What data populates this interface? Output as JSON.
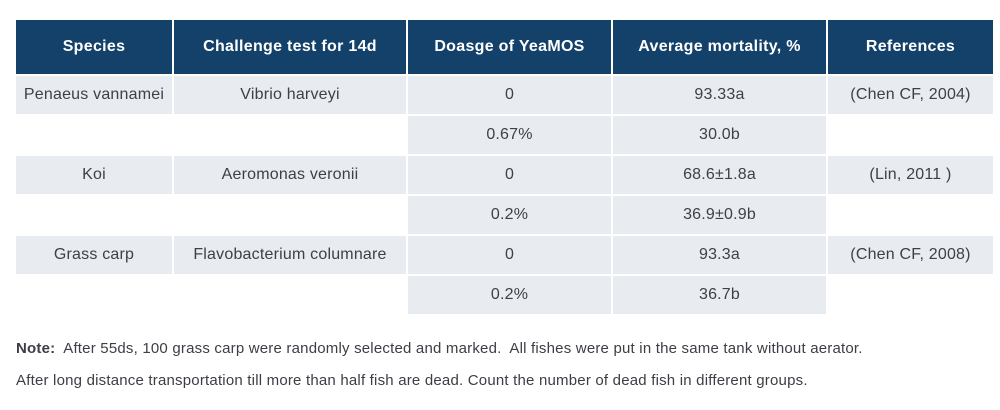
{
  "table": {
    "headers": [
      "Species",
      "Challenge test for 14d",
      "Doasge of YeaMOS",
      "Average mortality, %",
      "References"
    ],
    "rows": [
      {
        "species": "Penaeus vannamei",
        "challenge": "Vibrio harveyi",
        "dosages": [
          "0",
          "0.67%"
        ],
        "mortalities": [
          "93.33a",
          "30.0b"
        ],
        "reference": "(Chen CF, 2004)"
      },
      {
        "species": "Koi",
        "challenge": "Aeromonas veronii",
        "dosages": [
          "0",
          "0.2%"
        ],
        "mortalities": [
          "68.6±1.8a",
          "36.9±0.9b"
        ],
        "reference": "(Lin, 2011 )"
      },
      {
        "species": "Grass carp",
        "challenge": "Flavobacterium columnare",
        "dosages": [
          "0",
          "0.2%"
        ],
        "mortalities": [
          "93.3a",
          "36.7b"
        ],
        "reference": "(Chen CF, 2008)"
      }
    ]
  },
  "note": {
    "label": "Note:",
    "line1": "  After 55ds, 100 grass carp were randomly selected and marked.  All fishes were put in the same tank without aerator.",
    "line2": "After long distance transportation till more than half fish are dead. Count the number of dead fish in different groups."
  },
  "colors": {
    "header_bg": "#14416a",
    "header_text": "#ffffff",
    "cell_bg": "#e8ecf0",
    "body_text": "#3c4049",
    "note_text": "#3b3e44",
    "separator": "#ffffff"
  }
}
